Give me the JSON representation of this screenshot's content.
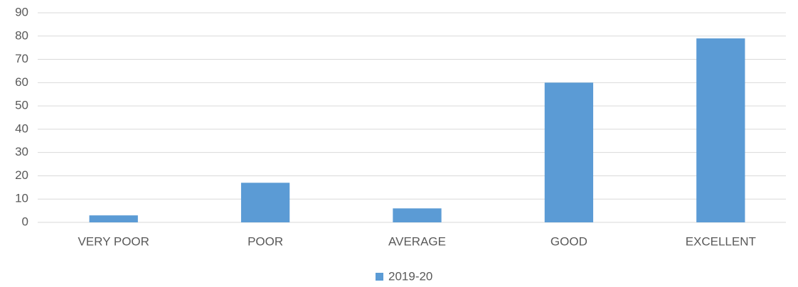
{
  "chart_data": {
    "type": "bar",
    "categories": [
      "VERY POOR",
      "POOR",
      "AVERAGE",
      "GOOD",
      "EXCELLENT"
    ],
    "series": [
      {
        "name": "2019-20",
        "color": "#5b9bd5",
        "values": [
          3,
          17,
          6,
          60,
          79
        ]
      }
    ],
    "ylim": [
      0,
      90
    ],
    "yticks": [
      0,
      10,
      20,
      30,
      40,
      50,
      60,
      70,
      80,
      90
    ],
    "grid": true,
    "legend": "bottom"
  }
}
